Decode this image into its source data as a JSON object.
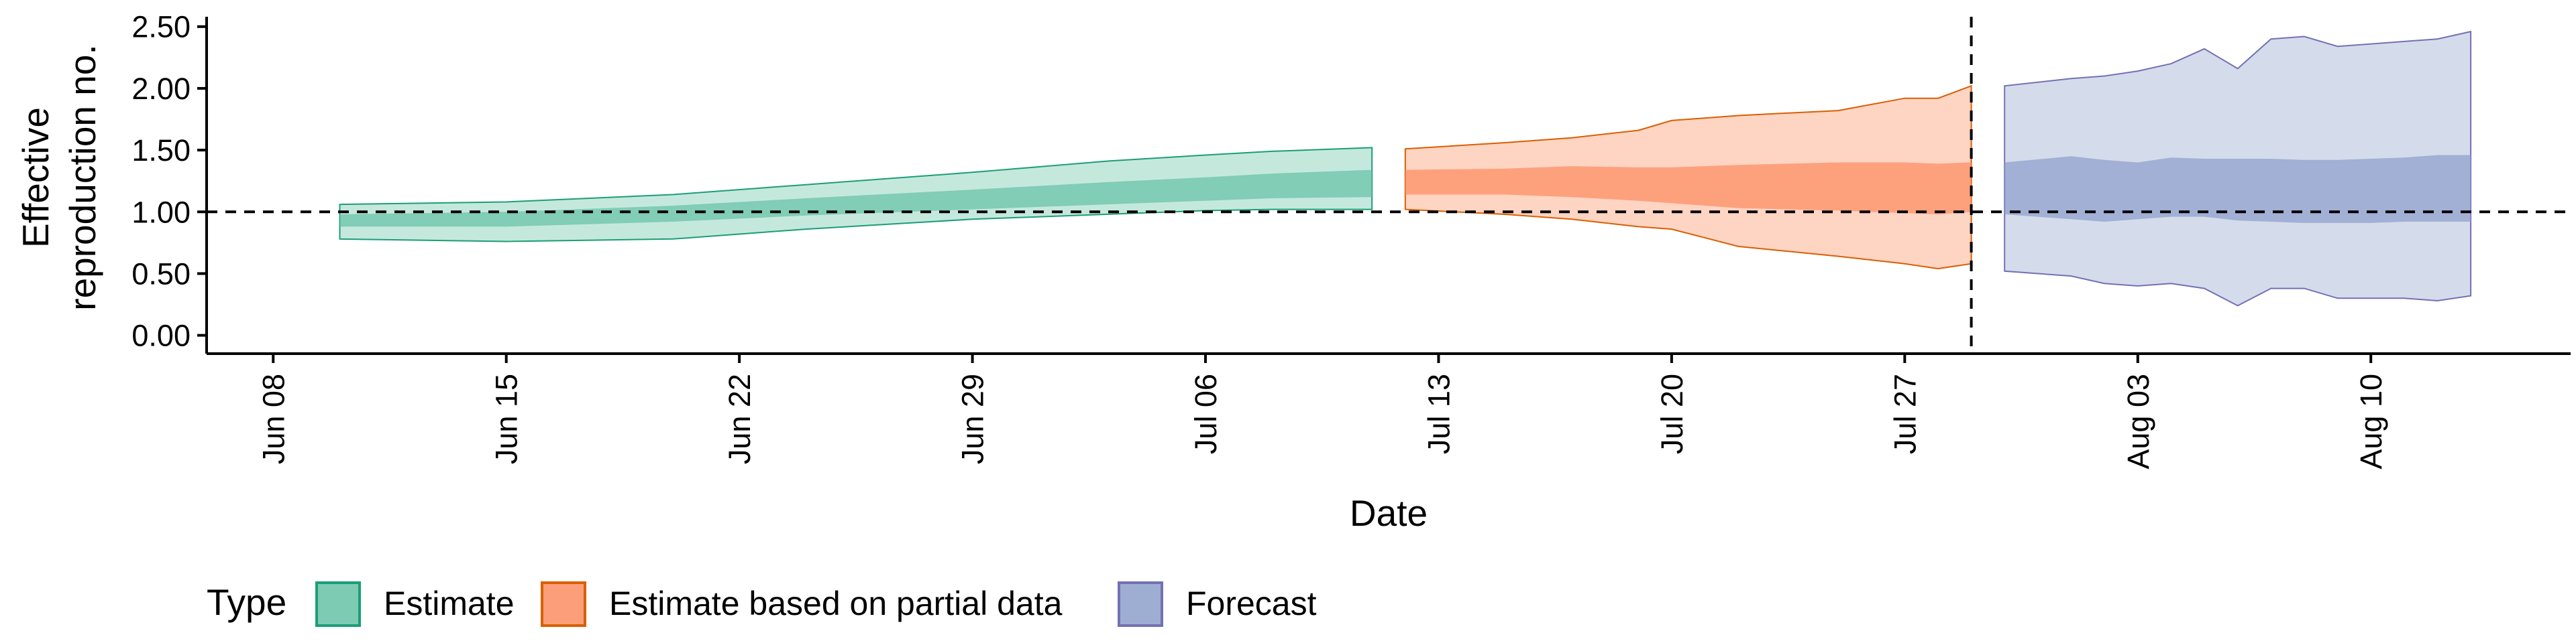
{
  "chart_data": {
    "type": "area",
    "xlabel": "Date",
    "ylabel": [
      "Effective",
      "reproduction no."
    ],
    "ylim": [
      0,
      2.5
    ],
    "xlim": [
      "2020-06-06",
      "2020-08-16"
    ],
    "y_ticks": [
      "0.00",
      "0.50",
      "1.00",
      "1.50",
      "2.00",
      "2.50"
    ],
    "x_ticks": [
      {
        "date": "2020-06-08",
        "label": "Jun 08"
      },
      {
        "date": "2020-06-15",
        "label": "Jun 15"
      },
      {
        "date": "2020-06-22",
        "label": "Jun 22"
      },
      {
        "date": "2020-06-29",
        "label": "Jun 29"
      },
      {
        "date": "2020-07-06",
        "label": "Jul 06"
      },
      {
        "date": "2020-07-13",
        "label": "Jul 13"
      },
      {
        "date": "2020-07-20",
        "label": "Jul 20"
      },
      {
        "date": "2020-07-27",
        "label": "Jul 27"
      },
      {
        "date": "2020-08-03",
        "label": "Aug 03"
      },
      {
        "date": "2020-08-10",
        "label": "Aug 10"
      }
    ],
    "reference_line_y": 1.0,
    "vertical_reference_date": "2020-07-29",
    "legend_title": "Type",
    "legend_position": "bottom",
    "grid": false,
    "series": [
      {
        "name": "Estimate",
        "fill_color": "#66c2a5",
        "line_color": "#1b9e77",
        "dates": [
          "2020-06-10",
          "2020-06-15",
          "2020-06-20",
          "2020-06-24",
          "2020-06-29",
          "2020-07-03",
          "2020-07-06",
          "2020-07-08",
          "2020-07-11"
        ],
        "outer_low": [
          0.78,
          0.76,
          0.78,
          0.86,
          0.94,
          0.98,
          1.01,
          1.02,
          1.02
        ],
        "outer_high": [
          1.06,
          1.08,
          1.14,
          1.22,
          1.32,
          1.41,
          1.46,
          1.49,
          1.52
        ],
        "inner_low": [
          0.88,
          0.88,
          0.92,
          0.97,
          1.02,
          1.06,
          1.09,
          1.11,
          1.12
        ],
        "inner_high": [
          0.98,
          1.0,
          1.05,
          1.11,
          1.18,
          1.24,
          1.28,
          1.31,
          1.34
        ]
      },
      {
        "name": "Estimate based on partial data",
        "fill_color": "#fc8d62",
        "line_color": "#d95f02",
        "dates": [
          "2020-07-12",
          "2020-07-15",
          "2020-07-17",
          "2020-07-19",
          "2020-07-20",
          "2020-07-22",
          "2020-07-25",
          "2020-07-27",
          "2020-07-28",
          "2020-07-29"
        ],
        "outer_low": [
          1.02,
          0.98,
          0.94,
          0.88,
          0.86,
          0.72,
          0.64,
          0.58,
          0.54,
          0.58
        ],
        "outer_high": [
          1.51,
          1.56,
          1.6,
          1.66,
          1.74,
          1.78,
          1.82,
          1.92,
          1.92,
          2.02
        ],
        "inner_low": [
          1.14,
          1.14,
          1.12,
          1.09,
          1.07,
          1.03,
          1.01,
          0.99,
          0.98,
          1.0
        ],
        "inner_high": [
          1.34,
          1.35,
          1.37,
          1.36,
          1.36,
          1.38,
          1.4,
          1.4,
          1.39,
          1.4
        ]
      },
      {
        "name": "Forecast",
        "fill_color": "#8da0cb",
        "line_color": "#7570b3",
        "dates": [
          "2020-07-30",
          "2020-08-01",
          "2020-08-02",
          "2020-08-03",
          "2020-08-04",
          "2020-08-05",
          "2020-08-06",
          "2020-08-07",
          "2020-08-08",
          "2020-08-09",
          "2020-08-10",
          "2020-08-11",
          "2020-08-12",
          "2020-08-13"
        ],
        "outer_low": [
          0.52,
          0.48,
          0.42,
          0.4,
          0.42,
          0.38,
          0.24,
          0.38,
          0.38,
          0.3,
          0.3,
          0.3,
          0.28,
          0.32
        ],
        "outer_high": [
          2.02,
          2.08,
          2.1,
          2.14,
          2.2,
          2.32,
          2.16,
          2.4,
          2.42,
          2.34,
          2.36,
          2.38,
          2.4,
          2.46
        ],
        "inner_low": [
          0.98,
          0.94,
          0.92,
          0.94,
          0.96,
          0.96,
          0.93,
          0.92,
          0.91,
          0.91,
          0.91,
          0.92,
          0.92,
          0.92
        ],
        "inner_high": [
          1.4,
          1.45,
          1.42,
          1.4,
          1.44,
          1.43,
          1.43,
          1.43,
          1.42,
          1.42,
          1.43,
          1.44,
          1.46,
          1.46
        ]
      }
    ]
  }
}
